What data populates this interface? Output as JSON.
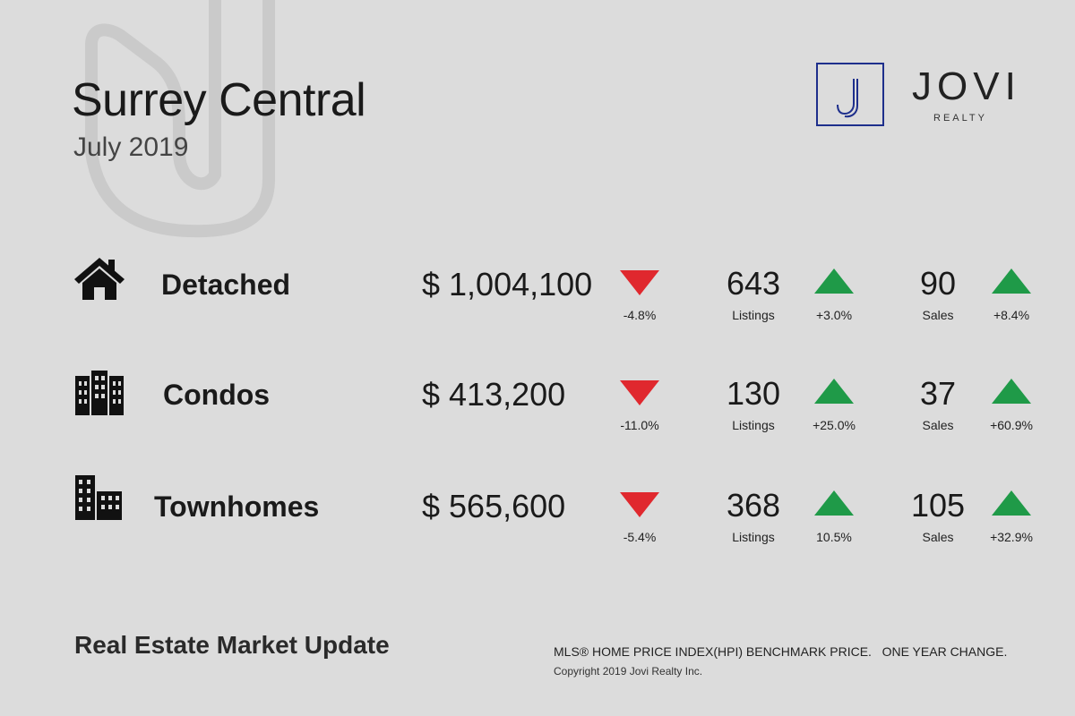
{
  "header": {
    "title": "Surrey Central",
    "subtitle": "July 2019"
  },
  "logo": {
    "name": "JOVI",
    "tagline": "REALTY",
    "brand_color": "#1e2f8c"
  },
  "colors": {
    "down": "#e0282e",
    "up": "#1f9a48"
  },
  "rows": [
    {
      "icon": "house-icon",
      "category": "Detached",
      "price": "$ 1,004,100",
      "price_change": "-4.8%",
      "price_direction": "down",
      "listings": "643",
      "listings_label": "Listings",
      "listings_change": "+3.0%",
      "listings_direction": "up",
      "sales": "90",
      "sales_label": "Sales",
      "sales_change": "+8.4%",
      "sales_direction": "up"
    },
    {
      "icon": "apartment-building-icon",
      "category": "Condos",
      "price": "$ 413,200",
      "price_change": "-11.0%",
      "price_direction": "down",
      "listings": "130",
      "listings_label": "Listings",
      "listings_change": "+25.0%",
      "listings_direction": "up",
      "sales": "37",
      "sales_label": "Sales",
      "sales_change": "+60.9%",
      "sales_direction": "up"
    },
    {
      "icon": "townhouse-building-icon",
      "category": "Townhomes",
      "price": "$ 565,600",
      "price_change": "-5.4%",
      "price_direction": "down",
      "listings": "368",
      "listings_label": "Listings",
      "listings_change": "10.5%",
      "listings_direction": "up",
      "sales": "105",
      "sales_label": "Sales",
      "sales_change": "+32.9%",
      "sales_direction": "up"
    }
  ],
  "footer": {
    "title": "Real Estate Market Update",
    "note": "MLS® HOME PRICE INDEX(HPI) BENCHMARK PRICE.   ONE YEAR CHANGE.",
    "copyright": "Copyright 2019 Jovi Realty Inc."
  }
}
